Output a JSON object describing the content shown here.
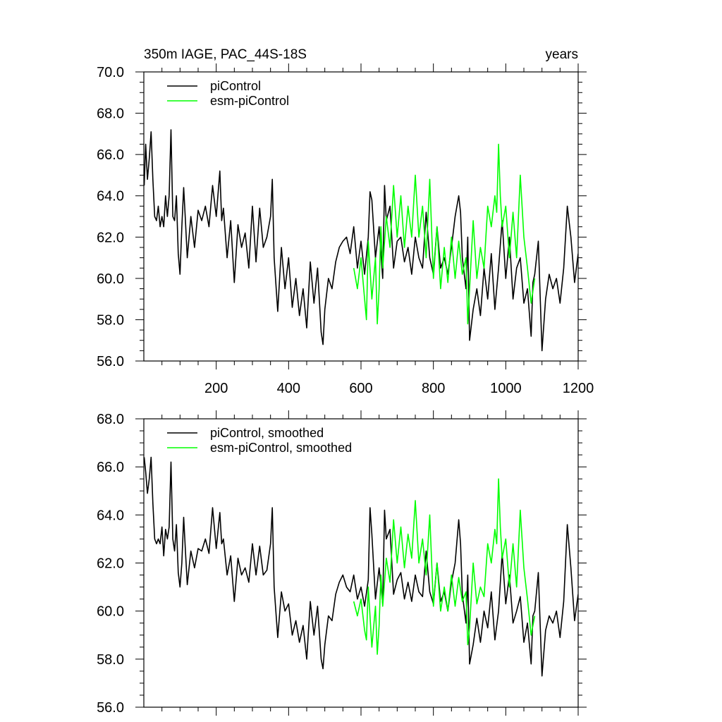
{
  "chart_data": [
    {
      "type": "line",
      "title": "350m IAGE, PAC_44S-18S",
      "title_right": "years",
      "xlim": [
        0,
        1200
      ],
      "ylim": [
        56,
        70
      ],
      "x_ticks": [
        200,
        400,
        600,
        800,
        1000,
        1200
      ],
      "y_ticks": [
        "56.0",
        "58.0",
        "60.0",
        "62.0",
        "64.0",
        "66.0",
        "68.0",
        "70.0"
      ],
      "legend": [
        "piControl",
        "esm-piControl"
      ],
      "series": [
        {
          "name": "piControl",
          "color": "#000000",
          "x": [
            1,
            5,
            10,
            15,
            20,
            25,
            30,
            35,
            40,
            45,
            50,
            55,
            60,
            65,
            70,
            75,
            80,
            85,
            90,
            95,
            100,
            105,
            110,
            115,
            120,
            130,
            140,
            150,
            160,
            170,
            180,
            190,
            200,
            210,
            215,
            220,
            230,
            240,
            250,
            260,
            270,
            280,
            290,
            300,
            310,
            320,
            330,
            340,
            350,
            355,
            360,
            370,
            380,
            390,
            400,
            410,
            420,
            430,
            440,
            450,
            460,
            470,
            480,
            490,
            495,
            500,
            510,
            520,
            530,
            540,
            550,
            560,
            570,
            580,
            590,
            600,
            610,
            620,
            625,
            630,
            640,
            650,
            660,
            665,
            670,
            680,
            690,
            700,
            710,
            720,
            730,
            740,
            750,
            760,
            770,
            780,
            790,
            800,
            810,
            820,
            830,
            840,
            850,
            860,
            870,
            875,
            880,
            890,
            895,
            900,
            910,
            920,
            930,
            940,
            950,
            960,
            970,
            980,
            990,
            1000,
            1010,
            1020,
            1030,
            1040,
            1050,
            1060,
            1070,
            1075,
            1080,
            1090,
            1100,
            1110,
            1120,
            1130,
            1140,
            1150,
            1160,
            1170,
            1180,
            1190,
            1200
          ],
          "values": [
            64.5,
            66.5,
            64.8,
            65.8,
            67.1,
            64.8,
            63.0,
            62.8,
            63.5,
            62.5,
            63.0,
            62.5,
            64.0,
            63.0,
            64.0,
            67.2,
            63.0,
            62.8,
            64.0,
            61.2,
            60.2,
            62.5,
            64.4,
            62.8,
            61.0,
            63.0,
            61.5,
            63.3,
            62.8,
            63.5,
            62.5,
            64.5,
            63.0,
            65.2,
            62.8,
            63.4,
            61.0,
            62.8,
            59.8,
            62.6,
            61.5,
            62.2,
            60.5,
            63.5,
            60.8,
            63.4,
            61.5,
            62.0,
            63.0,
            64.8,
            61.0,
            58.4,
            61.5,
            59.5,
            61.0,
            58.6,
            60.0,
            58.2,
            59.5,
            57.6,
            60.8,
            58.8,
            60.5,
            57.4,
            56.8,
            58.5,
            60.0,
            59.5,
            60.8,
            61.5,
            61.8,
            62.0,
            61.2,
            62.5,
            60.5,
            61.8,
            60.2,
            62.0,
            64.2,
            63.8,
            61.0,
            62.5,
            60.0,
            64.5,
            62.8,
            63.5,
            60.5,
            61.8,
            62.0,
            60.8,
            61.5,
            60.2,
            62.0,
            61.0,
            60.5,
            63.2,
            61.0,
            60.2,
            62.5,
            60.5,
            61.0,
            60.2,
            61.5,
            63.0,
            64.0,
            63.2,
            61.0,
            59.5,
            62.0,
            57.0,
            58.5,
            59.5,
            58.2,
            60.5,
            59.0,
            61.2,
            58.5,
            60.5,
            62.8,
            60.0,
            62.0,
            59.0,
            60.5,
            61.0,
            58.8,
            59.5,
            57.2,
            59.8,
            60.2,
            61.8,
            56.5,
            59.0,
            60.2,
            59.5,
            60.0,
            58.8,
            60.5,
            63.5,
            62.0,
            59.8,
            61.2
          ]
        },
        {
          "name": "esm-piControl",
          "color": "#00ff00",
          "x": [
            580,
            590,
            600,
            610,
            615,
            620,
            630,
            640,
            645,
            650,
            655,
            660,
            670,
            680,
            690,
            700,
            710,
            720,
            730,
            740,
            750,
            760,
            770,
            780,
            790,
            800,
            810,
            820,
            830,
            840,
            850,
            860,
            870,
            880,
            890,
            895,
            900,
            910,
            920,
            930,
            940,
            950,
            960,
            970,
            975,
            980,
            985,
            990,
            1000,
            1010,
            1020,
            1030,
            1040,
            1050,
            1060,
            1070,
            1080
          ],
          "values": [
            60.5,
            59.5,
            61.0,
            59.0,
            58.0,
            61.8,
            59.0,
            61.0,
            57.8,
            59.5,
            62.5,
            60.5,
            63.0,
            61.5,
            64.5,
            62.0,
            64.0,
            61.5,
            63.5,
            62.0,
            65.0,
            62.0,
            63.5,
            61.0,
            64.8,
            60.0,
            62.5,
            59.5,
            61.5,
            59.8,
            62.0,
            60.0,
            61.8,
            60.2,
            61.0,
            57.8,
            59.5,
            62.8,
            60.0,
            61.5,
            60.5,
            63.5,
            62.5,
            64.0,
            63.2,
            66.5,
            64.0,
            62.5,
            63.5,
            61.0,
            63.2,
            61.0,
            65.0,
            62.0,
            60.5,
            58.8,
            60.0
          ]
        }
      ]
    },
    {
      "type": "line",
      "xlim": [
        0,
        1200
      ],
      "ylim": [
        56,
        68
      ],
      "y_ticks": [
        "56.0",
        "58.0",
        "60.0",
        "62.0",
        "64.0",
        "66.0",
        "68.0"
      ],
      "legend": [
        "piControl, smoothed",
        "esm-piControl, smoothed"
      ],
      "series": [
        {
          "name": "piControl, smoothed",
          "color": "#000000",
          "x": [
            1,
            5,
            10,
            15,
            20,
            25,
            30,
            35,
            40,
            45,
            50,
            55,
            60,
            65,
            70,
            75,
            80,
            85,
            90,
            95,
            100,
            105,
            110,
            115,
            120,
            130,
            140,
            150,
            160,
            170,
            180,
            190,
            200,
            210,
            215,
            220,
            230,
            240,
            250,
            260,
            270,
            280,
            290,
            300,
            310,
            320,
            330,
            340,
            350,
            355,
            360,
            370,
            380,
            390,
            400,
            410,
            420,
            430,
            440,
            450,
            460,
            470,
            480,
            490,
            495,
            500,
            510,
            520,
            530,
            540,
            550,
            560,
            570,
            580,
            590,
            600,
            610,
            620,
            625,
            630,
            640,
            650,
            660,
            665,
            670,
            680,
            690,
            700,
            710,
            720,
            730,
            740,
            750,
            760,
            770,
            780,
            790,
            800,
            810,
            820,
            830,
            840,
            850,
            860,
            870,
            875,
            880,
            890,
            895,
            900,
            910,
            920,
            930,
            940,
            950,
            960,
            970,
            980,
            990,
            1000,
            1010,
            1020,
            1030,
            1040,
            1050,
            1060,
            1070,
            1075,
            1080,
            1090,
            1100,
            1110,
            1120,
            1130,
            1140,
            1150,
            1160,
            1170,
            1180,
            1190,
            1200
          ],
          "values": [
            66.4,
            65.8,
            64.9,
            65.5,
            66.4,
            64.5,
            63.0,
            62.8,
            63.0,
            62.8,
            63.5,
            62.3,
            63.4,
            63.0,
            63.5,
            66.2,
            63.0,
            62.5,
            63.6,
            61.6,
            61.0,
            62.0,
            63.9,
            62.5,
            61.1,
            62.5,
            61.8,
            62.6,
            62.5,
            63.0,
            62.4,
            64.3,
            62.6,
            64.1,
            62.8,
            63.0,
            61.5,
            62.3,
            60.4,
            62.2,
            61.5,
            61.8,
            61.2,
            62.8,
            61.5,
            62.7,
            61.5,
            61.7,
            62.8,
            64.3,
            61.0,
            58.9,
            60.8,
            60.0,
            60.3,
            59.0,
            59.6,
            58.7,
            59.4,
            58.0,
            60.4,
            59.0,
            60.2,
            58.0,
            57.6,
            58.6,
            59.8,
            59.6,
            60.7,
            61.2,
            61.5,
            61.0,
            60.8,
            61.5,
            60.5,
            61.0,
            60.2,
            61.3,
            64.3,
            63.2,
            60.5,
            61.8,
            60.3,
            64.2,
            63.0,
            63.4,
            60.7,
            61.3,
            61.6,
            60.5,
            61.2,
            60.4,
            61.5,
            60.8,
            60.6,
            62.5,
            60.8,
            60.3,
            62.0,
            60.4,
            60.8,
            60.0,
            61.2,
            62.0,
            63.8,
            62.8,
            60.7,
            59.5,
            61.5,
            57.8,
            58.6,
            59.7,
            58.7,
            60.0,
            59.3,
            60.8,
            58.8,
            60.0,
            62.4,
            60.3,
            61.5,
            59.5,
            60.0,
            60.6,
            58.7,
            59.5,
            57.8,
            59.8,
            60.0,
            61.6,
            57.3,
            59.2,
            59.8,
            59.5,
            60.0,
            58.9,
            60.4,
            63.6,
            61.8,
            59.6,
            60.7
          ]
        },
        {
          "name": "esm-piControl, smoothed",
          "color": "#00ff00",
          "x": [
            580,
            590,
            600,
            610,
            615,
            620,
            630,
            640,
            645,
            650,
            655,
            660,
            670,
            680,
            690,
            700,
            710,
            720,
            730,
            740,
            750,
            760,
            770,
            780,
            790,
            800,
            810,
            820,
            830,
            840,
            850,
            860,
            870,
            880,
            890,
            895,
            900,
            910,
            920,
            930,
            940,
            950,
            960,
            970,
            975,
            980,
            985,
            990,
            1000,
            1010,
            1020,
            1030,
            1040,
            1050,
            1060,
            1070,
            1080
          ],
          "values": [
            60.4,
            59.8,
            60.5,
            59.2,
            58.8,
            61.0,
            58.5,
            60.2,
            58.2,
            59.4,
            61.5,
            60.2,
            62.2,
            61.2,
            63.8,
            62.0,
            63.5,
            61.8,
            63.2,
            62.2,
            64.6,
            62.0,
            63.0,
            61.5,
            64.0,
            60.2,
            62.0,
            60.0,
            61.0,
            60.0,
            61.5,
            60.2,
            61.4,
            60.4,
            60.8,
            58.6,
            59.3,
            62.0,
            60.3,
            61.0,
            60.6,
            62.8,
            62.0,
            63.4,
            62.8,
            65.5,
            63.5,
            62.2,
            63.0,
            61.0,
            62.8,
            61.0,
            64.2,
            61.8,
            60.5,
            59.0,
            59.8
          ]
        }
      ]
    }
  ]
}
